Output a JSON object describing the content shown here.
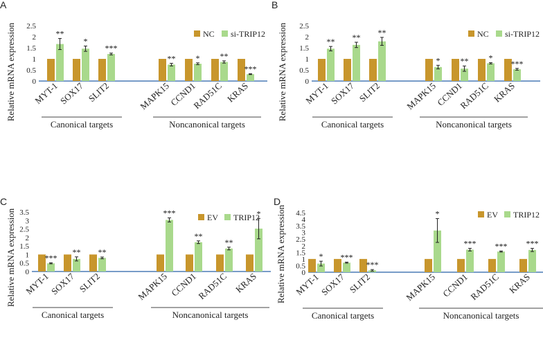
{
  "colors": {
    "bar1": "#c8962c",
    "bar2": "#a9d98c",
    "axis": "#4a7ab5",
    "err": "#222222"
  },
  "chart_data": [
    {
      "panel": "A",
      "type": "bar",
      "ylabel": "Relative mRNA expression",
      "ylim": [
        0,
        2.5
      ],
      "yticks": [
        "0",
        "0.5",
        "1",
        "1.5",
        "2",
        "2.5"
      ],
      "categories": [
        "MYT-1",
        "SOX17",
        "SLIT2",
        "MAPK15",
        "CCND1",
        "RAD51C",
        "KRAS"
      ],
      "groups": [
        {
          "label": "Canonical targets",
          "from": 0,
          "to": 2
        },
        {
          "label": "Noncanonical targets",
          "from": 3,
          "to": 6
        }
      ],
      "series": [
        {
          "name": "NC",
          "values": [
            1,
            1,
            1,
            1,
            1,
            1,
            1
          ],
          "errors": [
            0,
            0,
            0,
            0,
            0,
            0,
            0
          ]
        },
        {
          "name": "si-TRIP12",
          "values": [
            1.67,
            1.46,
            1.22,
            0.74,
            0.78,
            0.86,
            0.31
          ],
          "errors": [
            0.25,
            0.12,
            0.04,
            0.06,
            0.04,
            0.05,
            0.02
          ]
        }
      ],
      "significance": [
        "**",
        "*",
        "***",
        "**",
        "*",
        "**",
        "***"
      ]
    },
    {
      "panel": "B",
      "type": "bar",
      "ylabel": "Relative mRNA expression",
      "ylim": [
        0,
        2.5
      ],
      "yticks": [
        "0",
        "0.5",
        "1",
        "1.5",
        "2",
        "2.5"
      ],
      "categories": [
        "MYT-1",
        "SOX17",
        "SLIT2",
        "MAPK15",
        "CCND1",
        "RAD51C",
        "KRAS"
      ],
      "groups": [
        {
          "label": "Canonical targets",
          "from": 0,
          "to": 2
        },
        {
          "label": "Noncanonical targets",
          "from": 3,
          "to": 6
        }
      ],
      "series": [
        {
          "name": "NC",
          "values": [
            1,
            1,
            1,
            1,
            1,
            1,
            1
          ],
          "errors": [
            0,
            0,
            0,
            0,
            0,
            0,
            0
          ]
        },
        {
          "name": "si-TRIP12",
          "values": [
            1.46,
            1.63,
            1.79,
            0.63,
            0.56,
            0.8,
            0.53
          ],
          "errors": [
            0.1,
            0.12,
            0.18,
            0.08,
            0.12,
            0.03,
            0.04
          ]
        }
      ],
      "significance": [
        "**",
        "**",
        "**",
        "*",
        "**",
        "*",
        "***"
      ]
    },
    {
      "panel": "C",
      "type": "bar",
      "ylabel": "Relative mRNA expression",
      "ylim": [
        0,
        3.5
      ],
      "yticks": [
        "0",
        "0.5",
        "1",
        "1.5",
        "2",
        "2.5",
        "3",
        "3.5"
      ],
      "categories": [
        "MYT-1",
        "SOX17",
        "SLIT2",
        "MAPK15",
        "CCND1",
        "RAD51C",
        "KRAS"
      ],
      "groups": [
        {
          "label": "Canonical targets",
          "from": 0,
          "to": 2
        },
        {
          "label": "Noncanonical targets",
          "from": 3,
          "to": 6
        }
      ],
      "series": [
        {
          "name": "EV",
          "values": [
            1,
            1,
            1,
            1,
            1,
            1,
            1
          ],
          "errors": [
            0,
            0,
            0,
            0,
            0,
            0,
            0
          ]
        },
        {
          "name": "TRIP12",
          "values": [
            0.48,
            0.74,
            0.8,
            3.03,
            1.72,
            1.35,
            2.52
          ],
          "errors": [
            0.03,
            0.12,
            0.05,
            0.12,
            0.08,
            0.08,
            0.6
          ]
        }
      ],
      "significance": [
        "***",
        "**",
        "**",
        "***",
        "**",
        "**",
        "*"
      ]
    },
    {
      "panel": "D",
      "type": "bar",
      "ylabel": "Relative mRNA expression",
      "ylim": [
        0,
        4.5
      ],
      "yticks": [
        "0",
        "0.5",
        "1",
        "1.5",
        "2",
        "2.5",
        "3",
        "3.5",
        "4",
        "4.5"
      ],
      "categories": [
        "MYT-1",
        "SOX17",
        "SLIT2",
        "MAPK15",
        "CCND1",
        "RAD51C",
        "KRAS"
      ],
      "groups": [
        {
          "label": "Canonical targets",
          "from": 0,
          "to": 2
        },
        {
          "label": "Noncanonical targets",
          "from": 3,
          "to": 6
        }
      ],
      "series": [
        {
          "name": "EV",
          "values": [
            1,
            1,
            1,
            1,
            1,
            1,
            1
          ],
          "errors": [
            0,
            0,
            0,
            0,
            0,
            0,
            0
          ]
        },
        {
          "name": "TRIP12",
          "values": [
            0.65,
            0.72,
            0.14,
            3.15,
            1.7,
            1.56,
            1.68
          ],
          "errors": [
            0.18,
            0.04,
            0.06,
            0.9,
            0.1,
            0.04,
            0.12
          ]
        }
      ],
      "significance": [
        "*",
        "***",
        "***",
        "*",
        "***",
        "***",
        "***"
      ]
    }
  ]
}
